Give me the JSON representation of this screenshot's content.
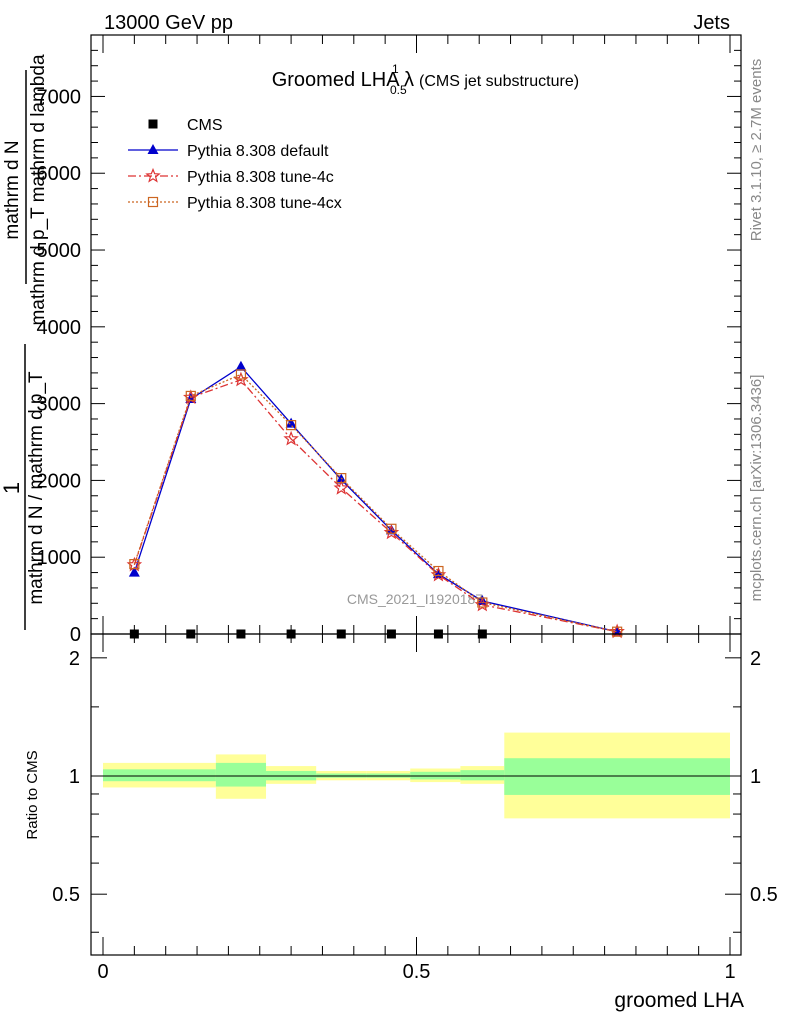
{
  "header": {
    "left": "13000 GeV pp",
    "right": "Jets"
  },
  "side_labels": {
    "rivet": "Rivet 3.1.10, ≥ 2.7M events",
    "mcplots": "mcplots.cern.ch [arXiv:1306.3436]"
  },
  "watermark": "CMS_2021_I1920187",
  "chart_data": [
    {
      "type": "line",
      "title": "Groomed LHA λ",
      "title_sup": "1",
      "title_sub": "0.5",
      "title_suffix": "(CMS jet substructure)",
      "ylabel_lines": [
        "1",
        "mathrm d N / mathrm d p_T",
        "mathrm d N",
        "mathrm d p_T mathrm d lambda"
      ],
      "ylabel_note": "Y-axis label is rendered stacked and partially overlapping in the original image.",
      "ylim": [
        0,
        7800
      ],
      "xlim": [
        -0.02,
        1.02
      ],
      "yticks": [
        0,
        1000,
        2000,
        3000,
        4000,
        5000,
        6000,
        7000
      ],
      "ytick_labels": [
        "0",
        "1000",
        "2000",
        "3000",
        "4000",
        "5000",
        "6000",
        "7000"
      ],
      "legend_position": "top-left",
      "legend": [
        "CMS",
        "Pythia 8.308 default",
        "Pythia 8.308 tune-4c",
        "Pythia 8.308 tune-4cx"
      ],
      "series": [
        {
          "name": "CMS",
          "marker": "square",
          "color": "#000000",
          "x": [
            0.05,
            0.14,
            0.22,
            0.3,
            0.38,
            0.46,
            0.535,
            0.605
          ],
          "y": [
            0,
            0,
            0,
            0,
            0,
            0,
            0,
            0
          ]
        },
        {
          "name": "Pythia 8.308 default",
          "marker": "triangle",
          "line": "solid",
          "color": "#0000cc",
          "x": [
            0.05,
            0.14,
            0.22,
            0.3,
            0.38,
            0.46,
            0.535,
            0.605,
            0.82
          ],
          "y": [
            800,
            3060,
            3480,
            2740,
            2010,
            1350,
            780,
            430,
            30
          ]
        },
        {
          "name": "Pythia 8.308 tune-4c",
          "marker": "star",
          "line": "dashdot",
          "color": "#dd3333",
          "x": [
            0.05,
            0.14,
            0.22,
            0.3,
            0.38,
            0.46,
            0.535,
            0.605,
            0.82
          ],
          "y": [
            900,
            3080,
            3310,
            2540,
            1900,
            1320,
            770,
            380,
            30
          ]
        },
        {
          "name": "Pythia 8.308 tune-4cx",
          "marker": "open-square",
          "line": "dotted",
          "color": "#cc6622",
          "x": [
            0.05,
            0.14,
            0.22,
            0.3,
            0.38,
            0.46,
            0.535,
            0.605,
            0.82
          ],
          "y": [
            910,
            3100,
            3380,
            2720,
            2030,
            1370,
            820,
            410,
            30
          ]
        }
      ]
    },
    {
      "type": "area",
      "ylabel": "Ratio to CMS",
      "xlabel": "groomed LHA",
      "ylim": [
        0.35,
        2.3
      ],
      "yscale": "log",
      "xlim": [
        -0.02,
        1.02
      ],
      "yticks": [
        0.5,
        1,
        2
      ],
      "ytick_labels": [
        "0.5",
        "1",
        "2"
      ],
      "xticks": [
        0,
        0.5,
        1
      ],
      "xtick_labels": [
        "0",
        "0.5",
        "1"
      ],
      "reference_line": 1,
      "band_colors": {
        "inner": "#99ff99",
        "outer": "#ffff99"
      },
      "bins": [
        {
          "x0": 0.0,
          "x1": 0.18,
          "inner": [
            0.97,
            1.04
          ],
          "outer": [
            0.935,
            1.08
          ]
        },
        {
          "x0": 0.18,
          "x1": 0.26,
          "inner": [
            0.94,
            1.08
          ],
          "outer": [
            0.875,
            1.135
          ]
        },
        {
          "x0": 0.26,
          "x1": 0.34,
          "inner": [
            0.975,
            1.03
          ],
          "outer": [
            0.955,
            1.06
          ]
        },
        {
          "x0": 0.34,
          "x1": 0.42,
          "inner": [
            0.99,
            1.015
          ],
          "outer": [
            0.975,
            1.03
          ]
        },
        {
          "x0": 0.42,
          "x1": 0.49,
          "inner": [
            0.99,
            1.015
          ],
          "outer": [
            0.975,
            1.03
          ]
        },
        {
          "x0": 0.49,
          "x1": 0.57,
          "inner": [
            0.98,
            1.025
          ],
          "outer": [
            0.965,
            1.045
          ]
        },
        {
          "x0": 0.57,
          "x1": 0.64,
          "inner": [
            0.975,
            1.035
          ],
          "outer": [
            0.955,
            1.06
          ]
        },
        {
          "x0": 0.64,
          "x1": 1.0,
          "inner": [
            0.895,
            1.11
          ],
          "outer": [
            0.78,
            1.29
          ]
        }
      ]
    }
  ]
}
